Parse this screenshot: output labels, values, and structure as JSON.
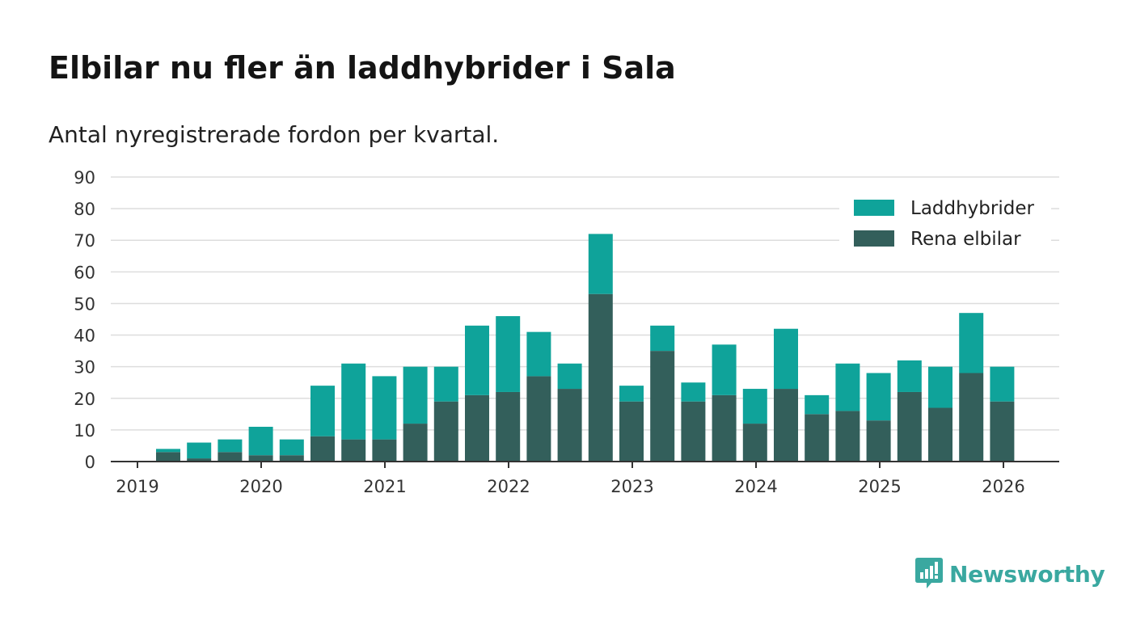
{
  "title": "Elbilar nu fler än laddhybrider i Sala",
  "subtitle": "Antal nyregistrerade fordon per kvartal.",
  "brand": "Newsworthy",
  "colors": {
    "plug_in_hybrid": "#0fa39a",
    "electric": "#335f5b",
    "grid": "#dddddd",
    "axis": "#333333",
    "brand": "#3aa8a0"
  },
  "chart_data": {
    "type": "bar",
    "stacked": true,
    "title": "Elbilar nu fler än laddhybrider i Sala",
    "subtitle": "Antal nyregistrerade fordon per kvartal.",
    "xlabel": "",
    "ylabel": "",
    "ylim": [
      0,
      90
    ],
    "yticks": [
      0,
      10,
      20,
      30,
      40,
      50,
      60,
      70,
      80,
      90
    ],
    "xtick_labels": [
      "2019",
      "2020",
      "2021",
      "2022",
      "2023",
      "2024",
      "2025",
      "2026"
    ],
    "grid": true,
    "legend_position": "top-right",
    "categories": [
      "2019 Q2",
      "2019 Q3",
      "2019 Q4",
      "2020 Q1",
      "2020 Q2",
      "2020 Q3",
      "2020 Q4",
      "2021 Q1",
      "2021 Q2",
      "2021 Q3",
      "2021 Q4",
      "2022 Q1",
      "2022 Q2",
      "2022 Q3",
      "2022 Q4",
      "2023 Q1",
      "2023 Q2",
      "2023 Q3",
      "2023 Q4",
      "2024 Q1",
      "2024 Q2",
      "2024 Q3",
      "2024 Q4",
      "2025 Q1",
      "2025 Q2",
      "2025 Q3",
      "2025 Q4",
      "2026 Q1"
    ],
    "series": [
      {
        "name": "Rena elbilar",
        "values": [
          3,
          1,
          3,
          2,
          2,
          8,
          7,
          7,
          12,
          19,
          21,
          22,
          27,
          23,
          53,
          19,
          35,
          19,
          21,
          12,
          23,
          15,
          16,
          13,
          22,
          17,
          28,
          19
        ]
      },
      {
        "name": "Laddhybrider",
        "values": [
          1,
          5,
          4,
          9,
          5,
          16,
          24,
          20,
          18,
          11,
          22,
          24,
          14,
          8,
          19,
          5,
          8,
          6,
          16,
          11,
          19,
          6,
          15,
          15,
          10,
          13,
          19,
          11
        ]
      }
    ],
    "legend": [
      "Laddhybrider",
      "Rena elbilar"
    ]
  }
}
